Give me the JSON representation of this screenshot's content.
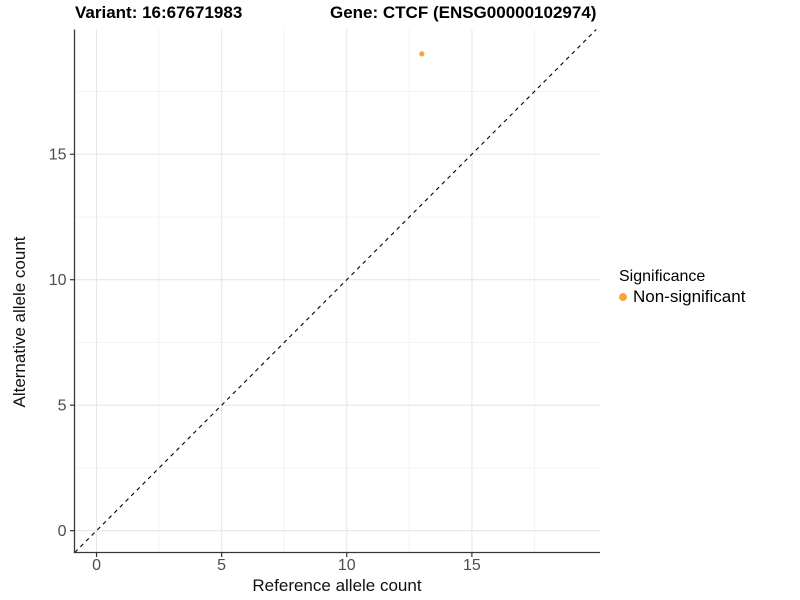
{
  "figure": {
    "background": "#FFFFFF"
  },
  "chart_data": {
    "type": "scatter",
    "titles": {
      "left": "Variant: 16:67671983",
      "right": "Gene: CTCF (ENSG00000102974)"
    },
    "xlabel": "Reference allele count",
    "ylabel": "Alternative allele count",
    "x_ticks": [
      0,
      5,
      10,
      15
    ],
    "y_ticks": [
      0,
      5,
      10,
      15
    ],
    "x_minor": [
      2.5,
      7.5,
      12.5,
      17.5
    ],
    "y_minor": [
      2.5,
      7.5,
      12.5,
      17.5
    ],
    "xlim": [
      -0.88,
      20.12
    ],
    "ylim": [
      -0.87,
      19.97
    ],
    "grid": "major+minor",
    "identity_line": {
      "equation": "y = x",
      "style": "dashed",
      "color": "#000000"
    },
    "points": [
      {
        "x": 13,
        "y": 19,
        "series": "Non-significant"
      }
    ],
    "legend": {
      "title": "Significance",
      "position": "right",
      "entries": [
        {
          "label": "Non-significant",
          "color": "#F9A33C"
        }
      ]
    },
    "colors": {
      "point_non_significant": "#F9A33C",
      "grid_major": "#E7E7E7",
      "grid_minor": "#F3F3F3",
      "axis_line": "#383838",
      "tick_mark": "#333333",
      "tick_label": "#4D4D4D",
      "text": "#000000"
    }
  }
}
